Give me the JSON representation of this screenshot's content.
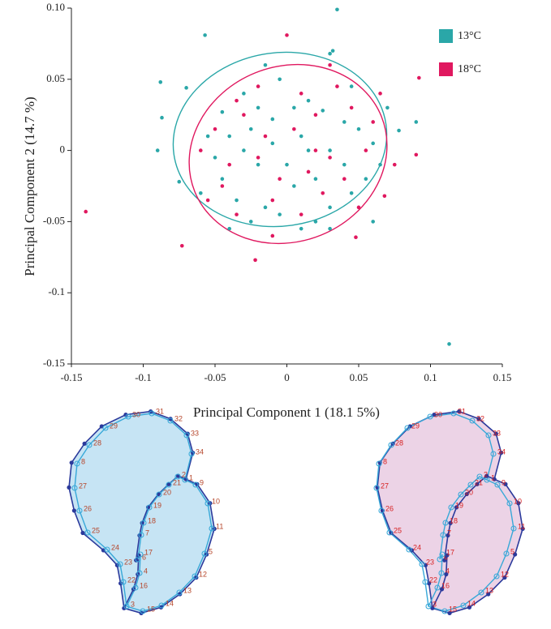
{
  "chart_data": {
    "type": "scatter",
    "xlabel": "Principal Component  1 (18.1 5%)",
    "ylabel": "Principal Component 2 (14.7 %)",
    "xlim": [
      -0.15,
      0.15
    ],
    "ylim": [
      -0.15,
      0.1
    ],
    "xticks": [
      -0.15,
      -0.1,
      -0.05,
      0,
      0.05,
      0.1,
      0.15
    ],
    "yticks": [
      {
        "value": 0.1,
        "label": "0.10"
      },
      0.05,
      0,
      -0.05,
      -0.1,
      -0.15
    ],
    "legend": "upper right",
    "series": [
      {
        "name": "13°C",
        "color": "#2aa7a8",
        "x": [
          0.035,
          0.113,
          -0.057,
          -0.088,
          -0.087,
          -0.09,
          -0.07,
          0.09,
          0.078,
          -0.075,
          0.03,
          0.032,
          -0.045,
          -0.03,
          -0.02,
          -0.01,
          0.005,
          0.015,
          0.025,
          0.04,
          0.05,
          0.06,
          0.065,
          0.055,
          0.045,
          0.03,
          0.02,
          0.01,
          -0.005,
          -0.015,
          -0.025,
          -0.035,
          -0.045,
          -0.05,
          -0.055,
          -0.04,
          -0.03,
          -0.02,
          -0.01,
          0.0,
          0.01,
          0.02,
          0.03,
          0.04,
          -0.025,
          0.005,
          0.015,
          -0.04,
          0.03,
          -0.005,
          0.045,
          -0.015,
          0.07,
          -0.06,
          0.06
        ],
        "values": [
          0.099,
          -0.136,
          0.081,
          0.048,
          0.023,
          0.0,
          0.044,
          0.02,
          0.014,
          -0.022,
          0.068,
          0.07,
          0.027,
          0.04,
          0.03,
          0.022,
          0.03,
          0.035,
          0.028,
          0.02,
          0.015,
          0.005,
          -0.01,
          -0.02,
          -0.03,
          -0.04,
          -0.05,
          -0.055,
          -0.045,
          -0.04,
          -0.05,
          -0.035,
          -0.02,
          -0.005,
          0.01,
          0.01,
          0.0,
          -0.01,
          0.005,
          -0.01,
          0.01,
          -0.02,
          0.0,
          -0.01,
          0.015,
          -0.025,
          0.0,
          -0.055,
          -0.055,
          0.05,
          0.045,
          0.06,
          0.03,
          -0.03,
          -0.05
        ]
      },
      {
        "name": "18°C",
        "color": "#e0185f",
        "x": [
          -0.14,
          -0.073,
          -0.022,
          0.0,
          0.092,
          0.048,
          0.09,
          0.068,
          0.03,
          0.035,
          -0.035,
          -0.02,
          0.01,
          0.02,
          0.045,
          0.06,
          0.055,
          0.03,
          0.015,
          -0.005,
          -0.02,
          -0.04,
          -0.05,
          -0.055,
          -0.035,
          -0.01,
          0.01,
          0.025,
          0.04,
          -0.015,
          0.005,
          -0.03,
          0.05,
          -0.045,
          0.02,
          -0.01,
          0.065,
          0.075,
          -0.06
        ],
        "values": [
          -0.043,
          -0.067,
          -0.077,
          0.081,
          0.051,
          -0.061,
          -0.003,
          -0.032,
          0.06,
          0.045,
          0.035,
          0.045,
          0.04,
          0.025,
          0.03,
          0.02,
          0.0,
          -0.005,
          -0.015,
          -0.02,
          -0.005,
          -0.01,
          0.015,
          -0.035,
          -0.045,
          -0.035,
          -0.045,
          -0.03,
          -0.02,
          0.01,
          0.015,
          0.025,
          -0.04,
          -0.025,
          0.0,
          -0.06,
          0.04,
          -0.01,
          0.0
        ]
      }
    ]
  },
  "shapes": [
    {
      "fill": "#c6e4f4",
      "label_color": "#b5452a",
      "landmarks": [
        "1",
        "2",
        "3",
        "4",
        "5",
        "6",
        "7",
        "8",
        "9",
        "10",
        "11",
        "12",
        "13",
        "14",
        "15",
        "16",
        "17",
        "18",
        "19",
        "20",
        "21",
        "22",
        "23",
        "24",
        "25",
        "26",
        "27",
        "28",
        "29",
        "30",
        "31",
        "32",
        "33",
        "34"
      ]
    },
    {
      "fill": "#ecd3e6",
      "label_color": "#d62020",
      "landmarks": [
        "1",
        "2",
        "3",
        "4",
        "5",
        "6",
        "7",
        "8",
        "9",
        "10",
        "11",
        "12",
        "13",
        "14",
        "15",
        "16",
        "17",
        "18",
        "19",
        "20",
        "21",
        "22",
        "23",
        "24",
        "25",
        "26",
        "27",
        "28",
        "29",
        "30",
        "31",
        "32",
        "33",
        "34"
      ]
    }
  ]
}
